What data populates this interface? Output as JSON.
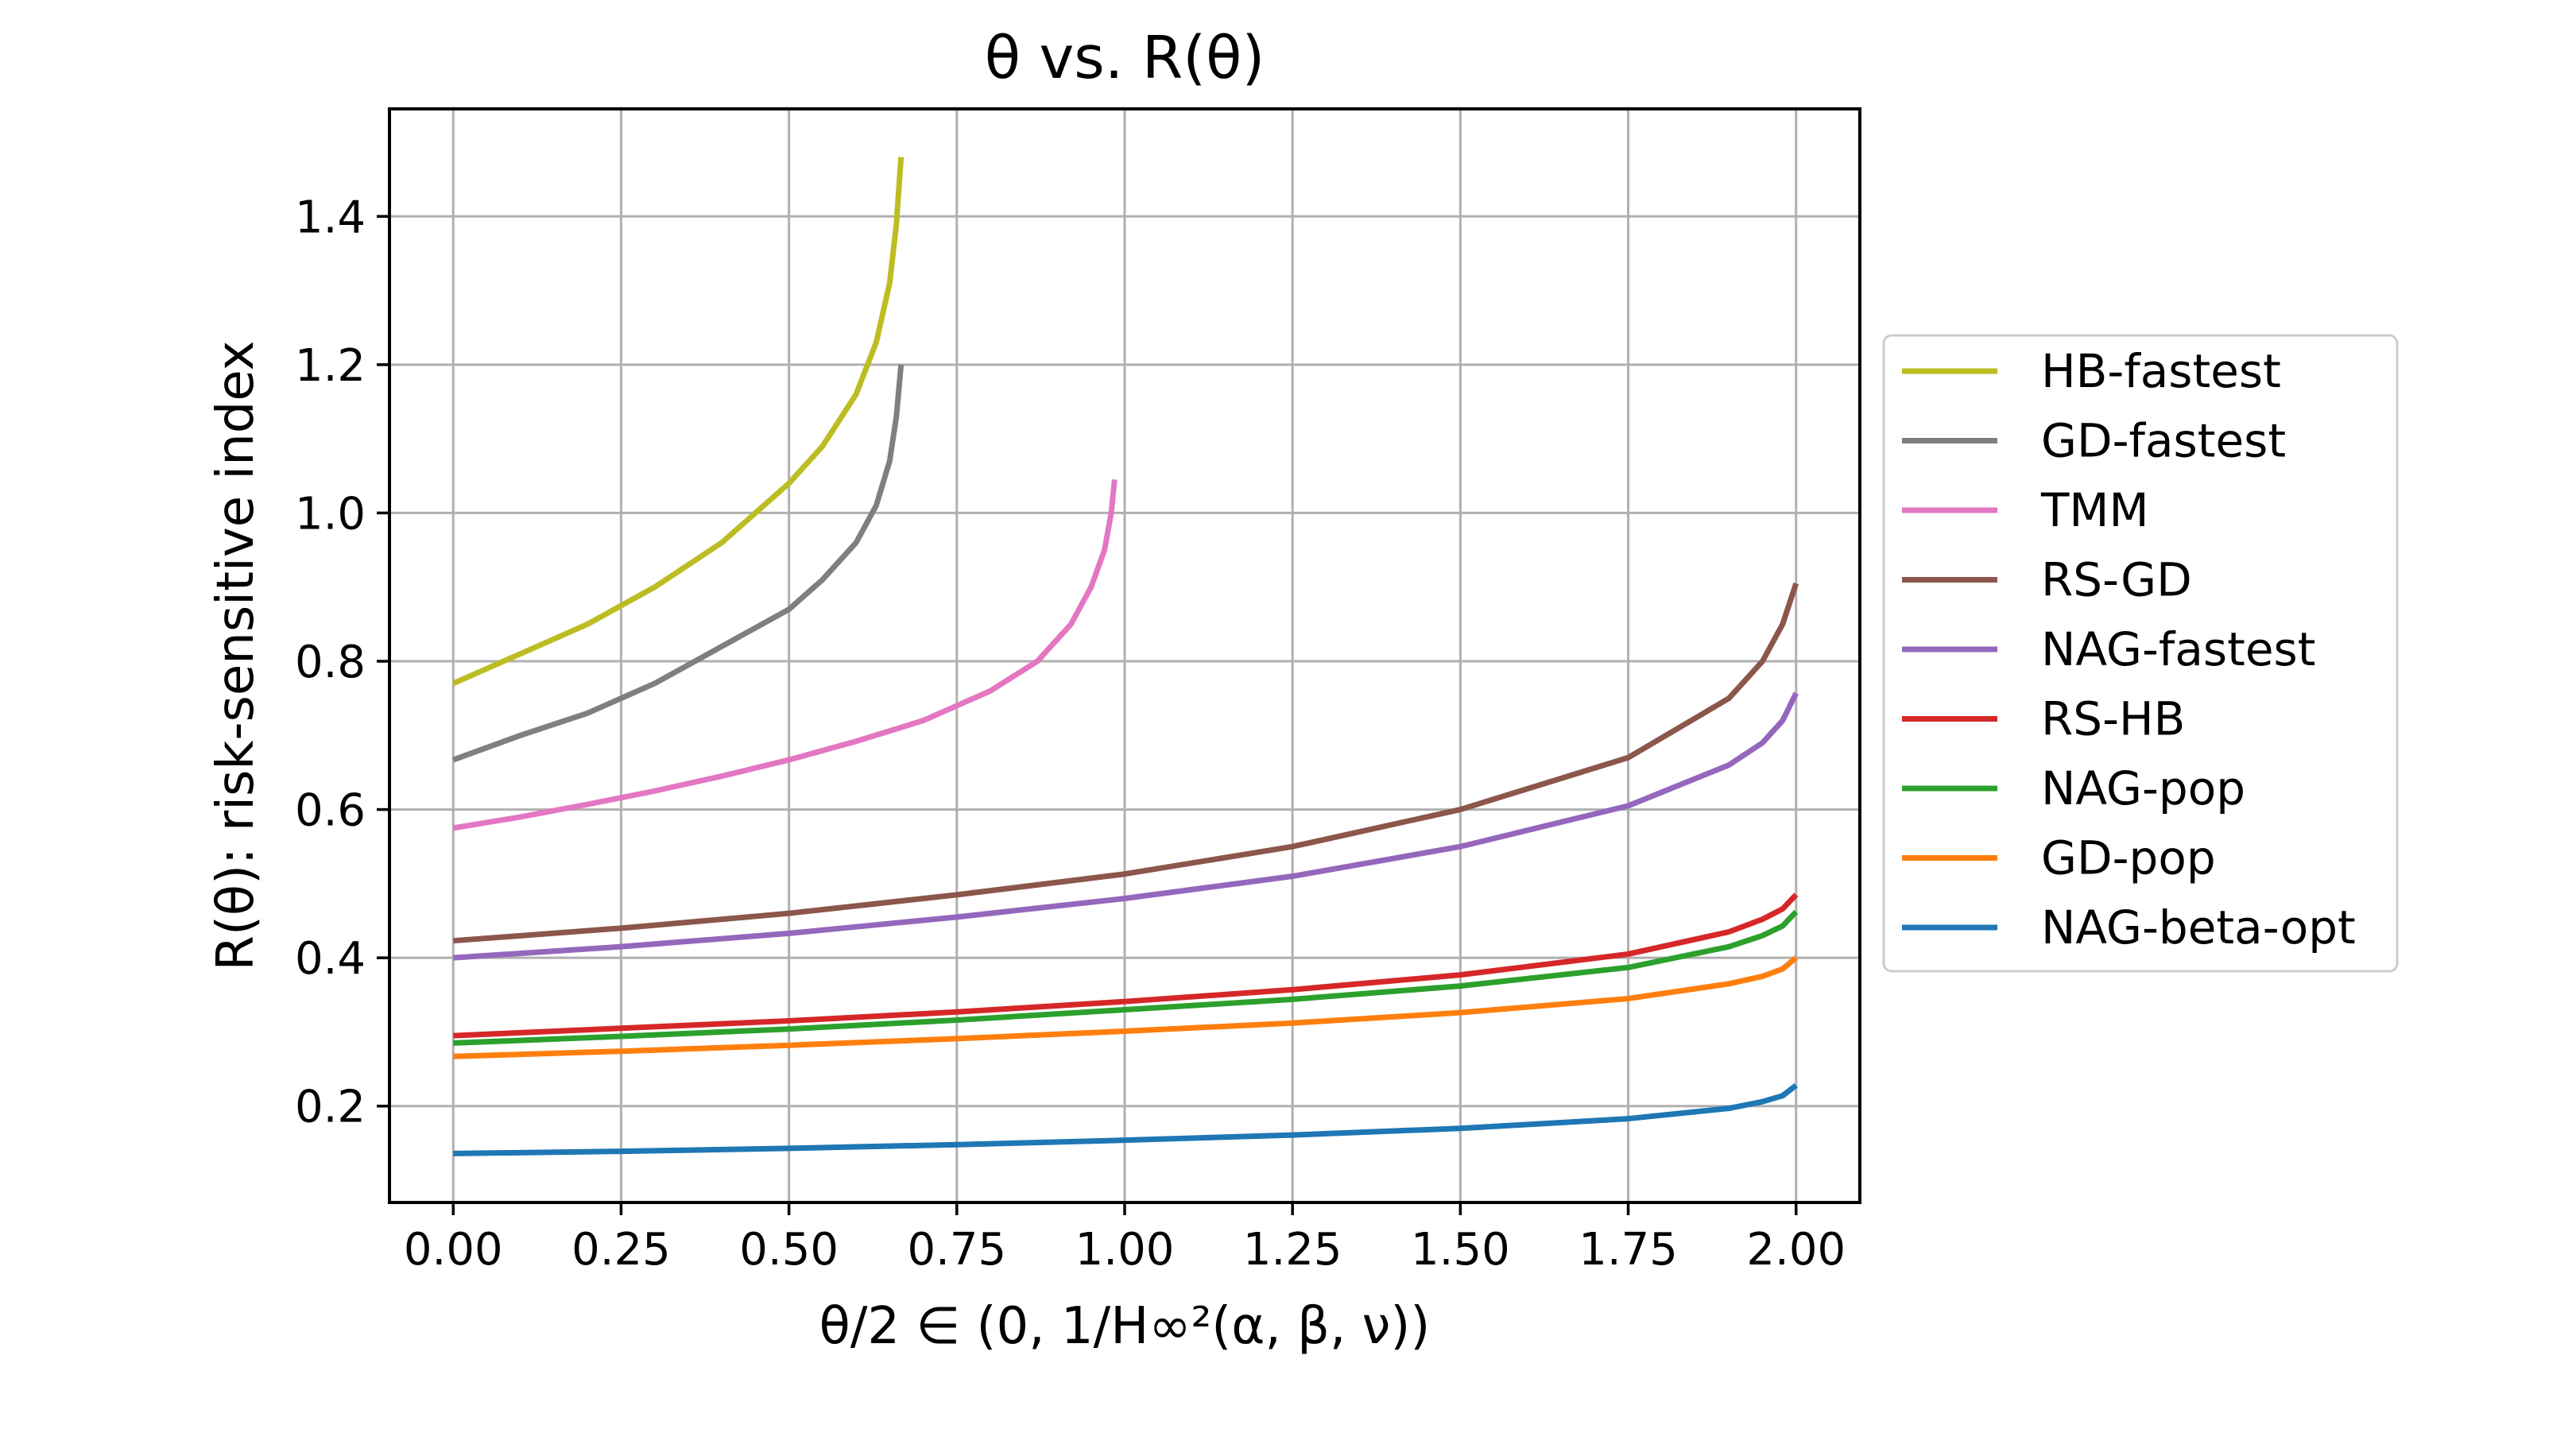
{
  "chart_data": {
    "type": "line",
    "title": "θ vs. R(θ)",
    "xlabel": "θ/2 ∈ (0, 1/H∞²(α, β, ν))",
    "ylabel": "R(θ): risk-sensitive index",
    "xlim": [
      -0.095,
      2.095
    ],
    "ylim": [
      0.07,
      1.545
    ],
    "xticks": [
      0,
      0.25,
      0.5,
      0.75,
      1.0,
      1.25,
      1.5,
      1.75,
      2.0
    ],
    "xtick_labels": [
      "0.00",
      "0.25",
      "0.50",
      "0.75",
      "1.00",
      "1.25",
      "1.50",
      "1.75",
      "2.00"
    ],
    "yticks": [
      0.2,
      0.4,
      0.6,
      0.8,
      1.0,
      1.2,
      1.4
    ],
    "ytick_labels": [
      "0.2",
      "0.4",
      "0.6",
      "0.8",
      "1.0",
      "1.2",
      "1.4"
    ],
    "grid": true,
    "legend_position": "right, outside plot",
    "series": [
      {
        "name": "HB-fastest",
        "color": "#bcbd22",
        "x": [
          0,
          0.1,
          0.2,
          0.3,
          0.4,
          0.5,
          0.55,
          0.6,
          0.63,
          0.65,
          0.66,
          0.667
        ],
        "y": [
          0.77,
          0.81,
          0.85,
          0.9,
          0.96,
          1.04,
          1.09,
          1.16,
          1.23,
          1.31,
          1.39,
          1.48
        ]
      },
      {
        "name": "GD-fastest",
        "color": "#7f7f7f",
        "x": [
          0,
          0.1,
          0.2,
          0.3,
          0.4,
          0.5,
          0.55,
          0.6,
          0.63,
          0.65,
          0.66,
          0.667
        ],
        "y": [
          0.667,
          0.7,
          0.73,
          0.77,
          0.82,
          0.87,
          0.91,
          0.96,
          1.01,
          1.07,
          1.13,
          1.2
        ]
      },
      {
        "name": "TMM",
        "color": "#e377c2",
        "x": [
          0,
          0.1,
          0.2,
          0.3,
          0.4,
          0.5,
          0.6,
          0.7,
          0.8,
          0.87,
          0.92,
          0.95,
          0.97,
          0.98,
          0.985
        ],
        "y": [
          0.575,
          0.59,
          0.607,
          0.625,
          0.645,
          0.667,
          0.692,
          0.72,
          0.76,
          0.8,
          0.85,
          0.9,
          0.95,
          1.0,
          1.045
        ]
      },
      {
        "name": "RS-GD",
        "color": "#8c564b",
        "x": [
          0,
          0.25,
          0.5,
          0.75,
          1.0,
          1.25,
          1.5,
          1.75,
          1.9,
          1.95,
          1.98,
          2.0
        ],
        "y": [
          0.423,
          0.44,
          0.46,
          0.485,
          0.513,
          0.55,
          0.6,
          0.67,
          0.75,
          0.8,
          0.85,
          0.905
        ]
      },
      {
        "name": "NAG-fastest",
        "color": "#9467bd",
        "x": [
          0,
          0.25,
          0.5,
          0.75,
          1.0,
          1.25,
          1.5,
          1.75,
          1.9,
          1.95,
          1.98,
          2.0
        ],
        "y": [
          0.4,
          0.415,
          0.433,
          0.455,
          0.48,
          0.51,
          0.55,
          0.605,
          0.66,
          0.69,
          0.72,
          0.757
        ]
      },
      {
        "name": "RS-HB",
        "color": "#d62728",
        "x": [
          0,
          0.25,
          0.5,
          0.75,
          1.0,
          1.25,
          1.5,
          1.75,
          1.9,
          1.95,
          1.98,
          2.0
        ],
        "y": [
          0.295,
          0.305,
          0.315,
          0.327,
          0.341,
          0.357,
          0.377,
          0.405,
          0.435,
          0.452,
          0.466,
          0.485
        ]
      },
      {
        "name": "NAG-pop",
        "color": "#2ca02c",
        "x": [
          0,
          0.25,
          0.5,
          0.75,
          1.0,
          1.25,
          1.5,
          1.75,
          1.9,
          1.95,
          1.98,
          2.0
        ],
        "y": [
          0.285,
          0.294,
          0.304,
          0.316,
          0.33,
          0.344,
          0.362,
          0.387,
          0.415,
          0.43,
          0.443,
          0.462
        ]
      },
      {
        "name": "GD-pop",
        "color": "#ff7f0e",
        "x": [
          0,
          0.25,
          0.5,
          0.75,
          1.0,
          1.25,
          1.5,
          1.75,
          1.9,
          1.95,
          1.98,
          2.0
        ],
        "y": [
          0.267,
          0.274,
          0.282,
          0.291,
          0.301,
          0.312,
          0.326,
          0.345,
          0.365,
          0.375,
          0.385,
          0.4
        ]
      },
      {
        "name": "NAG-beta-opt",
        "color": "#1f77b4",
        "x": [
          0,
          0.25,
          0.5,
          0.75,
          1.0,
          1.25,
          1.5,
          1.75,
          1.9,
          1.95,
          1.98,
          2.0
        ],
        "y": [
          0.136,
          0.139,
          0.143,
          0.148,
          0.154,
          0.161,
          0.17,
          0.183,
          0.197,
          0.206,
          0.214,
          0.228
        ]
      }
    ]
  }
}
